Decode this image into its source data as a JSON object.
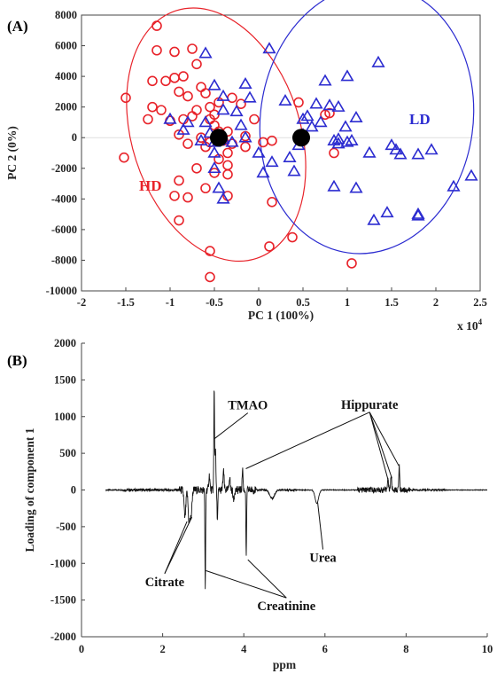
{
  "chart_data": [
    {
      "panel_label": "(A)",
      "type": "scatter",
      "xlabel": "PC 1 (100%)",
      "ylabel": "PC 2 (0%)",
      "x_scale_note": "x 10",
      "x_scale_exponent": "4",
      "xlim": [
        -2,
        2.5
      ],
      "ylim": [
        -10000,
        8000
      ],
      "xticks": [
        -2,
        -1.5,
        -1,
        -0.5,
        0,
        0.5,
        1,
        1.5,
        2,
        2.5
      ],
      "yticks": [
        -10000,
        -8000,
        -6000,
        -4000,
        -2000,
        0,
        2000,
        4000,
        6000,
        8000
      ],
      "groups": [
        {
          "name": "HD",
          "color": "#e8232a",
          "marker": "circle",
          "ellipse": {
            "cx": -0.48,
            "cy": 200,
            "rx": 0.95,
            "ry": 8500,
            "angle_deg": -18
          },
          "centroid": [
            -0.45,
            0
          ],
          "points": [
            [
              -1.15,
              7300
            ],
            [
              -1.15,
              5700
            ],
            [
              -0.95,
              5600
            ],
            [
              -0.75,
              5800
            ],
            [
              -0.7,
              4800
            ],
            [
              -1.2,
              3700
            ],
            [
              -1.05,
              3700
            ],
            [
              -0.95,
              3900
            ],
            [
              -0.85,
              4000
            ],
            [
              -1.5,
              2600
            ],
            [
              -1.2,
              2000
            ],
            [
              -1.1,
              1800
            ],
            [
              -0.9,
              3000
            ],
            [
              -0.8,
              2700
            ],
            [
              -0.65,
              3300
            ],
            [
              -0.6,
              2900
            ],
            [
              -0.55,
              2000
            ],
            [
              -0.5,
              1500
            ],
            [
              -0.7,
              1800
            ],
            [
              -0.75,
              1400
            ],
            [
              -0.85,
              1200
            ],
            [
              -1.0,
              1100
            ],
            [
              -1.25,
              1200
            ],
            [
              -0.3,
              2600
            ],
            [
              -0.2,
              2200
            ],
            [
              -0.45,
              2300
            ],
            [
              -0.55,
              1200
            ],
            [
              -0.5,
              800
            ],
            [
              -0.45,
              400
            ],
            [
              -0.35,
              400
            ],
            [
              -0.4,
              -200
            ],
            [
              -0.55,
              -300
            ],
            [
              -0.6,
              -600
            ],
            [
              -0.65,
              0
            ],
            [
              -0.8,
              -400
            ],
            [
              -0.9,
              200
            ],
            [
              -0.3,
              -400
            ],
            [
              -0.15,
              100
            ],
            [
              -0.05,
              1200
            ],
            [
              0.05,
              -300
            ],
            [
              0.15,
              -200
            ],
            [
              -0.15,
              -600
            ],
            [
              -0.35,
              -1000
            ],
            [
              -0.45,
              -1400
            ],
            [
              -0.35,
              -1800
            ],
            [
              -0.5,
              -2300
            ],
            [
              -0.35,
              -2400
            ],
            [
              -0.7,
              -2000
            ],
            [
              -0.9,
              -2800
            ],
            [
              -0.95,
              -3800
            ],
            [
              -0.6,
              -3300
            ],
            [
              -0.35,
              -3800
            ],
            [
              -0.8,
              -3900
            ],
            [
              0.15,
              -4200
            ],
            [
              -0.9,
              -5400
            ],
            [
              0.12,
              -7100
            ],
            [
              0.38,
              -6500
            ],
            [
              -0.55,
              -7400
            ],
            [
              -0.55,
              -9100
            ],
            [
              -1.52,
              -1300
            ],
            [
              0.45,
              2300
            ],
            [
              0.75,
              1500
            ],
            [
              0.8,
              1600
            ],
            [
              0.85,
              -1000
            ],
            [
              1.05,
              -8200
            ]
          ]
        },
        {
          "name": "LD",
          "color": "#2b2bd0",
          "marker": "triangle",
          "ellipse": {
            "cx": 1.22,
            "cy": 1200,
            "rx": 1.2,
            "ry": 8800,
            "angle_deg": 8
          },
          "centroid": [
            0.48,
            0
          ],
          "points": [
            [
              0.12,
              5800
            ],
            [
              -0.6,
              5500
            ],
            [
              -0.5,
              3400
            ],
            [
              -0.4,
              2700
            ],
            [
              -0.4,
              1800
            ],
            [
              -0.25,
              1700
            ],
            [
              -0.6,
              1000
            ],
            [
              -0.8,
              1000
            ],
            [
              -0.85,
              500
            ],
            [
              -1.0,
              1200
            ],
            [
              -0.65,
              -200
            ],
            [
              -0.55,
              300
            ],
            [
              -0.5,
              -300
            ],
            [
              -0.45,
              -200
            ],
            [
              -0.4,
              -100
            ],
            [
              -0.5,
              -1000
            ],
            [
              -0.5,
              -2000
            ],
            [
              -0.45,
              -3300
            ],
            [
              -0.4,
              -4000
            ],
            [
              -0.3,
              -300
            ],
            [
              -0.2,
              800
            ],
            [
              -0.15,
              3500
            ],
            [
              -0.1,
              2600
            ],
            [
              0.0,
              -1000
            ],
            [
              0.15,
              -1600
            ],
            [
              0.05,
              -2300
            ],
            [
              0.3,
              2400
            ],
            [
              0.35,
              -1300
            ],
            [
              0.4,
              -2200
            ],
            [
              0.45,
              -500
            ],
            [
              0.5,
              200
            ],
            [
              0.5,
              1200
            ],
            [
              0.55,
              1400
            ],
            [
              0.6,
              700
            ],
            [
              0.7,
              1000
            ],
            [
              0.75,
              3700
            ],
            [
              0.65,
              2200
            ],
            [
              0.8,
              2100
            ],
            [
              0.9,
              2000
            ],
            [
              0.85,
              -200
            ],
            [
              0.9,
              -400
            ],
            [
              1.0,
              4000
            ],
            [
              1.0,
              -300
            ],
            [
              1.05,
              -200
            ],
            [
              1.1,
              1300
            ],
            [
              0.98,
              700
            ],
            [
              0.85,
              -3200
            ],
            [
              1.1,
              -3300
            ],
            [
              1.25,
              -1000
            ],
            [
              1.3,
              -5400
            ],
            [
              1.35,
              4900
            ],
            [
              1.45,
              -4900
            ],
            [
              1.5,
              -500
            ],
            [
              1.55,
              -800
            ],
            [
              1.6,
              -1100
            ],
            [
              1.8,
              -1100
            ],
            [
              1.8,
              -5000
            ],
            [
              1.8,
              -5100
            ],
            [
              1.95,
              -800
            ],
            [
              2.2,
              -3200
            ],
            [
              2.4,
              -2500
            ],
            [
              0.9,
              -100
            ],
            [
              -0.15,
              0
            ]
          ]
        }
      ],
      "centroid_color": "#000000"
    },
    {
      "panel_label": "(B)",
      "type": "line",
      "xlabel": "ppm",
      "ylabel": "Loading of component 1",
      "xlim": [
        0,
        10
      ],
      "ylim": [
        -2000,
        2000
      ],
      "xticks": [
        0,
        2,
        4,
        6,
        8,
        10
      ],
      "yticks": [
        -2000,
        -1500,
        -1000,
        -500,
        0,
        500,
        1000,
        1500,
        2000
      ],
      "x_range": [
        0.6,
        10
      ],
      "peaks": [
        {
          "x": 2.55,
          "y": -380,
          "w": 0.03
        },
        {
          "x": 2.65,
          "y": -430,
          "w": 0.03
        },
        {
          "x": 2.7,
          "y": -350,
          "w": 0.03
        },
        {
          "x": 3.05,
          "y": -1380,
          "w": 0.012
        },
        {
          "x": 3.15,
          "y": 200,
          "w": 0.02
        },
        {
          "x": 3.27,
          "y": 1400,
          "w": 0.012
        },
        {
          "x": 3.3,
          "y": 600,
          "w": 0.015
        },
        {
          "x": 3.35,
          "y": -400,
          "w": 0.015
        },
        {
          "x": 3.5,
          "y": 250,
          "w": 0.02
        },
        {
          "x": 3.65,
          "y": 180,
          "w": 0.02
        },
        {
          "x": 3.75,
          "y": -150,
          "w": 0.02
        },
        {
          "x": 3.97,
          "y": 300,
          "w": 0.015
        },
        {
          "x": 4.06,
          "y": -950,
          "w": 0.012
        },
        {
          "x": 4.7,
          "y": -120,
          "w": 0.08
        },
        {
          "x": 5.8,
          "y": -180,
          "w": 0.06
        },
        {
          "x": 7.55,
          "y": 150,
          "w": 0.02
        },
        {
          "x": 7.63,
          "y": 180,
          "w": 0.02
        },
        {
          "x": 7.83,
          "y": 330,
          "w": 0.015
        }
      ],
      "annotations": [
        {
          "text": "TMAO",
          "text_x": 4.1,
          "text_y": 1050,
          "lines_to": [
            [
              3.28,
              700
            ]
          ]
        },
        {
          "text": "Hippurate",
          "text_x": 7.1,
          "text_y": 1060,
          "lines_to": [
            [
              4.05,
              290
            ],
            [
              7.55,
              150
            ],
            [
              7.65,
              160
            ],
            [
              7.82,
              330
            ]
          ]
        },
        {
          "text": "Urea",
          "text_x": 5.95,
          "text_y": -810,
          "lines_to": [
            [
              5.82,
              -170
            ]
          ]
        },
        {
          "text": "Citrate",
          "text_x": 2.05,
          "text_y": -1140,
          "lines_to": [
            [
              2.6,
              -430
            ],
            [
              2.72,
              -370
            ]
          ]
        },
        {
          "text": "Creatinine",
          "text_x": 5.05,
          "text_y": -1470,
          "lines_to": [
            [
              3.07,
              -1100
            ],
            [
              4.1,
              -950
            ]
          ]
        }
      ]
    }
  ]
}
